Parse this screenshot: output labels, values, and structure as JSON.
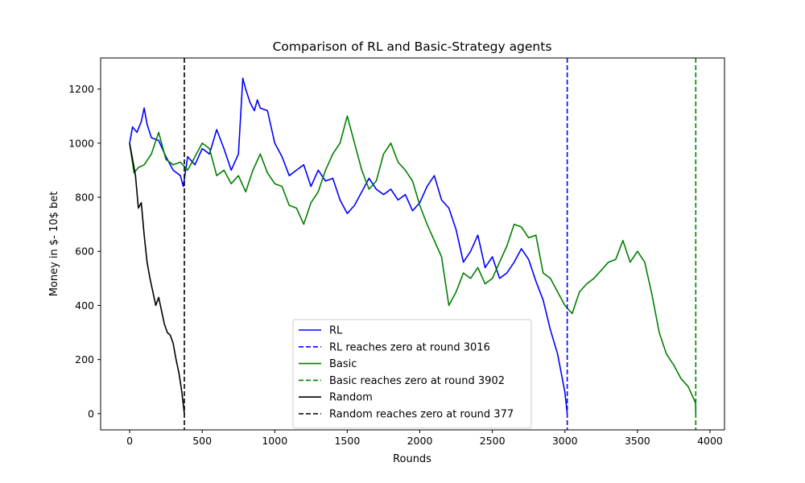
{
  "chart_data": {
    "type": "line",
    "title": "Comparison of RL and Basic-Strategy agents",
    "xlabel": "Rounds",
    "ylabel": "Money in $- 10$ bet",
    "xlim": [
      -200,
      4100
    ],
    "ylim": [
      -60,
      1315
    ],
    "xticks": [
      0,
      500,
      1000,
      1500,
      2000,
      2500,
      3000,
      3500,
      4000
    ],
    "yticks": [
      0,
      200,
      400,
      600,
      800,
      1000,
      1200
    ],
    "grid": false,
    "legend_position": "lower center",
    "series": [
      {
        "name": "RL",
        "color": "#0000ff",
        "style": "solid",
        "x": [
          0,
          20,
          50,
          80,
          100,
          120,
          150,
          200,
          250,
          300,
          350,
          370,
          400,
          450,
          500,
          550,
          600,
          650,
          700,
          750,
          780,
          800,
          830,
          860,
          880,
          900,
          950,
          1000,
          1050,
          1100,
          1150,
          1200,
          1250,
          1300,
          1350,
          1400,
          1450,
          1500,
          1550,
          1600,
          1650,
          1700,
          1750,
          1800,
          1850,
          1900,
          1950,
          2000,
          2050,
          2100,
          2150,
          2200,
          2250,
          2300,
          2350,
          2400,
          2450,
          2500,
          2550,
          2600,
          2650,
          2700,
          2750,
          2800,
          2850,
          2900,
          2950,
          3000,
          3016
        ],
        "y": [
          1000,
          1060,
          1040,
          1080,
          1130,
          1070,
          1020,
          1010,
          950,
          900,
          880,
          840,
          950,
          920,
          980,
          960,
          1050,
          980,
          900,
          960,
          1240,
          1200,
          1150,
          1120,
          1160,
          1130,
          1120,
          1000,
          950,
          880,
          900,
          920,
          840,
          900,
          860,
          870,
          790,
          740,
          770,
          820,
          870,
          830,
          810,
          830,
          790,
          810,
          750,
          780,
          840,
          880,
          790,
          760,
          680,
          560,
          600,
          660,
          540,
          580,
          500,
          520,
          560,
          610,
          570,
          490,
          420,
          310,
          220,
          80,
          0
        ]
      },
      {
        "name": "Basic",
        "color": "#008000",
        "style": "solid",
        "x": [
          0,
          30,
          60,
          100,
          150,
          200,
          250,
          300,
          350,
          400,
          450,
          500,
          550,
          600,
          650,
          700,
          750,
          800,
          850,
          900,
          950,
          1000,
          1050,
          1100,
          1150,
          1200,
          1250,
          1300,
          1350,
          1400,
          1450,
          1500,
          1550,
          1600,
          1650,
          1700,
          1750,
          1800,
          1850,
          1900,
          1950,
          2000,
          2050,
          2100,
          2150,
          2200,
          2250,
          2300,
          2350,
          2400,
          2450,
          2500,
          2550,
          2600,
          2650,
          2700,
          2750,
          2800,
          2850,
          2900,
          2950,
          3000,
          3050,
          3100,
          3150,
          3200,
          3250,
          3300,
          3350,
          3400,
          3450,
          3500,
          3550,
          3600,
          3650,
          3700,
          3750,
          3800,
          3850,
          3900,
          3902
        ],
        "y": [
          1000,
          890,
          910,
          920,
          960,
          1040,
          940,
          920,
          930,
          900,
          950,
          1000,
          980,
          880,
          900,
          850,
          880,
          820,
          900,
          960,
          890,
          850,
          840,
          770,
          760,
          700,
          780,
          820,
          900,
          960,
          1000,
          1100,
          1000,
          900,
          830,
          860,
          960,
          1000,
          930,
          900,
          860,
          770,
          700,
          640,
          580,
          400,
          450,
          520,
          500,
          540,
          480,
          500,
          560,
          620,
          700,
          690,
          650,
          660,
          520,
          500,
          450,
          400,
          370,
          450,
          480,
          500,
          530,
          560,
          570,
          640,
          560,
          600,
          560,
          440,
          300,
          220,
          180,
          130,
          100,
          40,
          0
        ]
      },
      {
        "name": "Random",
        "color": "#000000",
        "style": "solid",
        "x": [
          0,
          20,
          40,
          60,
          80,
          100,
          120,
          140,
          160,
          180,
          200,
          220,
          240,
          260,
          280,
          300,
          320,
          340,
          360,
          377
        ],
        "y": [
          1000,
          940,
          880,
          760,
          780,
          660,
          560,
          500,
          450,
          400,
          430,
          380,
          330,
          300,
          290,
          260,
          200,
          150,
          80,
          0
        ]
      }
    ],
    "vlines": [
      {
        "name": "RL reaches zero at round 3016",
        "x": 3016,
        "color": "#0000ff",
        "style": "dashed"
      },
      {
        "name": "Basic reaches zero at round 3902",
        "x": 3902,
        "color": "#008000",
        "style": "dashed"
      },
      {
        "name": "Random reaches zero at round 377",
        "x": 377,
        "color": "#000000",
        "style": "dashed"
      }
    ]
  },
  "legend": [
    {
      "label": "RL",
      "color": "#0000ff",
      "style": "solid"
    },
    {
      "label": "RL reaches zero at round 3016",
      "color": "#0000ff",
      "style": "dashed"
    },
    {
      "label": "Basic",
      "color": "#008000",
      "style": "solid"
    },
    {
      "label": "Basic reaches zero at round 3902",
      "color": "#008000",
      "style": "dashed"
    },
    {
      "label": "Random",
      "color": "#000000",
      "style": "solid"
    },
    {
      "label": "Random reaches zero at round 377",
      "color": "#000000",
      "style": "dashed"
    }
  ]
}
